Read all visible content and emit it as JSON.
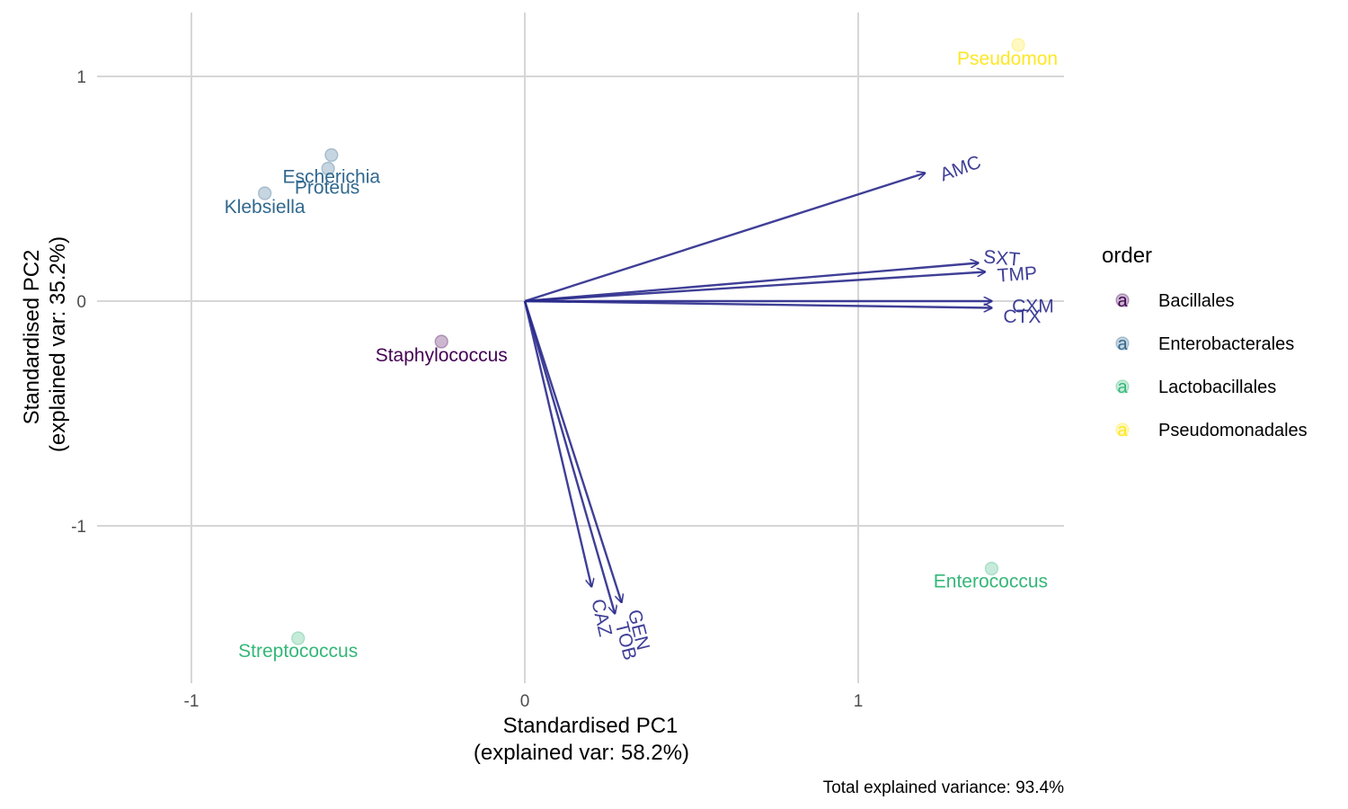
{
  "chart_data": {
    "type": "scatter",
    "subtype": "biplot",
    "xlabel_line1": "Standardised PC1",
    "xlabel_line2": "(explained var: 58.2%)",
    "ylabel_line1": "Standardised PC2",
    "ylabel_line2": "(explained var: 35.2%)",
    "caption": "Total explained variance: 93.4%",
    "xlim": [
      -1.0,
      1.6
    ],
    "ylim": [
      -1.68,
      1.3
    ],
    "x_ticks": [
      {
        "value": -1,
        "label": "-1"
      },
      {
        "value": 0,
        "label": "0"
      },
      {
        "value": 1,
        "label": "1"
      }
    ],
    "y_ticks": [
      {
        "value": 1,
        "label": "1"
      },
      {
        "value": 0,
        "label": "0"
      },
      {
        "value": -1,
        "label": "-1"
      }
    ],
    "grid": true,
    "legend": {
      "title": "order",
      "position": "right",
      "key_glyph": "a",
      "entries": [
        {
          "label": "Bacillales",
          "color": "#440154"
        },
        {
          "label": "Enterobacterales",
          "color": "#31688e"
        },
        {
          "label": "Lactobacillales",
          "color": "#35b779"
        },
        {
          "label": "Pseudomonadales",
          "color": "#fde725"
        }
      ]
    },
    "points": [
      {
        "label": "Pseudomon",
        "order": "Pseudomonadales",
        "x": 1.48,
        "y": 1.14
      },
      {
        "label": "Escherichia",
        "order": "Enterobacterales",
        "x": -0.58,
        "y": 0.65
      },
      {
        "label": "Proteus",
        "order": "Enterobacterales",
        "x": -0.59,
        "y": 0.59
      },
      {
        "label": "Klebsiella",
        "order": "Enterobacterales",
        "x": -0.78,
        "y": 0.48
      },
      {
        "label": "Staphylococcus",
        "order": "Bacillales",
        "x": -0.25,
        "y": -0.18
      },
      {
        "label": "Enterococcus",
        "order": "Lactobacillales",
        "x": 1.4,
        "y": -1.19
      },
      {
        "label": "Streptococcus",
        "order": "Lactobacillales",
        "x": -0.68,
        "y": -1.5
      }
    ],
    "arrows": [
      {
        "label": "AMC",
        "x": 1.2,
        "y": 0.57
      },
      {
        "label": "SXT",
        "x": 1.36,
        "y": 0.17
      },
      {
        "label": "TMP",
        "x": 1.38,
        "y": 0.13
      },
      {
        "label": "CXM",
        "x": 1.4,
        "y": 0.0
      },
      {
        "label": "CTX",
        "x": 1.4,
        "y": -0.03
      },
      {
        "label": "CAZ",
        "x": 0.2,
        "y": -1.27
      },
      {
        "label": "TOB",
        "x": 0.27,
        "y": -1.39
      },
      {
        "label": "GEN",
        "x": 0.29,
        "y": -1.34
      }
    ],
    "arrow_color": "#2a2a8c"
  }
}
